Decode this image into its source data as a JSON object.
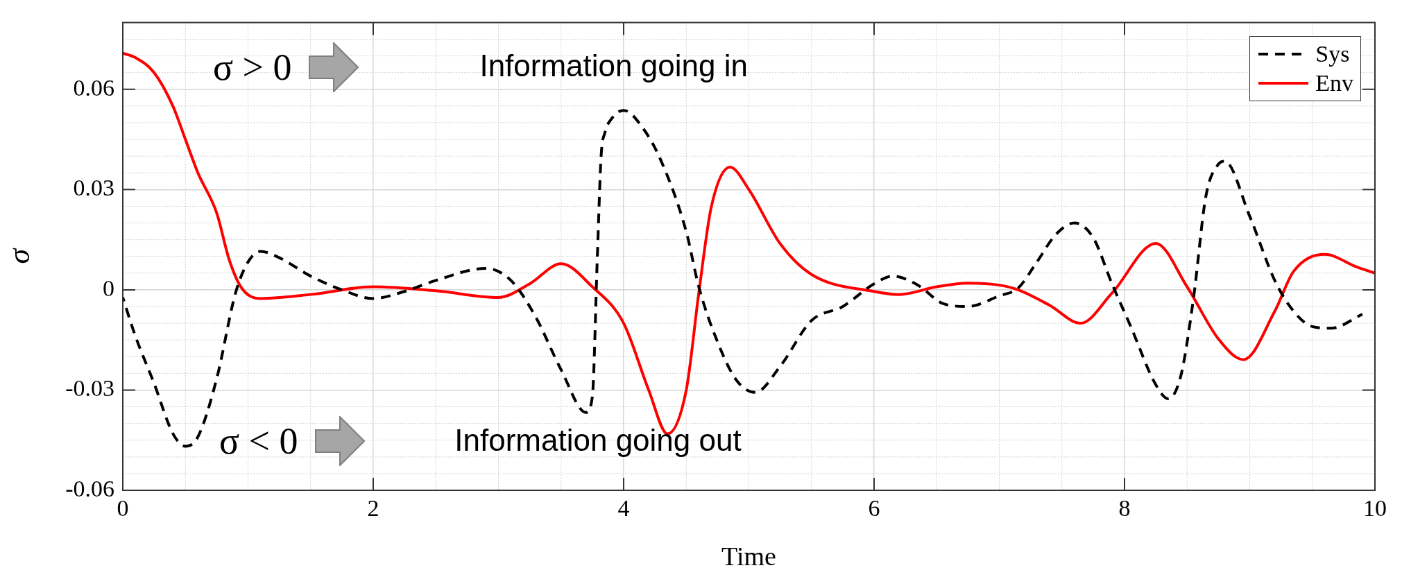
{
  "chart_data": {
    "type": "line",
    "xlabel": "Time",
    "ylabel": "σ",
    "annotations": [
      "σ > 0",
      "Information going in",
      "σ < 0",
      "Information going out"
    ],
    "xlim": [
      0,
      10
    ],
    "xticks": [
      0,
      2,
      4,
      6,
      8,
      10
    ],
    "ylim": [
      -0.06,
      0.08
    ],
    "yticks": [
      -0.06,
      -0.03,
      0,
      0.03,
      0.06
    ],
    "grid": true,
    "legend": "top right",
    "marker": "none",
    "series": [
      {
        "name": "Sys",
        "color": "#000000",
        "line_style": "dashed",
        "x": [
          0,
          0.1,
          0.25,
          0.4,
          0.5,
          0.6,
          0.75,
          0.9,
          1.0,
          1.1,
          1.25,
          1.5,
          1.75,
          2,
          2.25,
          2.5,
          2.9,
          3.1,
          3.3,
          3.5,
          3.7,
          3.75,
          3.79,
          3.82,
          3.85,
          3.9,
          4.0,
          4.15,
          4.3,
          4.5,
          4.6,
          4.75,
          4.9,
          5.05,
          5.25,
          5.5,
          5.75,
          6.0,
          6.15,
          6.35,
          6.55,
          6.75,
          7.0,
          7.15,
          7.3,
          7.45,
          7.6,
          7.75,
          7.9,
          8.05,
          8.25,
          8.35,
          8.45,
          8.55,
          8.65,
          8.75,
          8.8,
          9.0,
          9.2,
          9.35,
          9.5,
          9.65,
          9.9
        ],
        "values": [
          -0.0023,
          -0.0138,
          -0.028,
          -0.043,
          -0.0468,
          -0.044,
          -0.0266,
          -0.001,
          0.0083,
          0.0115,
          0.0096,
          0.0041,
          0,
          -0.0026,
          -0.0005,
          0.0028,
          0.0064,
          0.0028,
          -0.0083,
          -0.0239,
          -0.0367,
          -0.032,
          0.01,
          0.04,
          0.047,
          0.051,
          0.0537,
          0.0486,
          0.0385,
          0.0174,
          0.0009,
          -0.0156,
          -0.027,
          -0.0307,
          -0.0229,
          -0.0092,
          -0.005,
          0.0018,
          0.0041,
          0.0014,
          -0.0041,
          -0.005,
          -0.0018,
          0.0005,
          0.0083,
          0.0165,
          0.02,
          0.0156,
          0.0018,
          -0.011,
          -0.0284,
          -0.0326,
          -0.0257,
          -0.0028,
          0.028,
          0.0376,
          0.0385,
          0.022,
          0.0028,
          -0.0064,
          -0.011,
          -0.0115,
          -0.0073
        ]
      },
      {
        "name": "Env",
        "color": "#ff0000",
        "line_style": "solid",
        "x": [
          0,
          0.1,
          0.25,
          0.4,
          0.5,
          0.6,
          0.75,
          0.85,
          0.95,
          1.1,
          1.5,
          2,
          2.5,
          3,
          3.25,
          3.5,
          3.75,
          4,
          4.2,
          4.35,
          4.5,
          4.6,
          4.7,
          4.85,
          5.0,
          5.25,
          5.5,
          6,
          6.2,
          6.5,
          6.75,
          7,
          7.15,
          7.4,
          7.65,
          7.9,
          8.25,
          8.5,
          8.75,
          8.95,
          9.2,
          9.35,
          9.6,
          9.85,
          10
        ],
        "values": [
          0.0708,
          0.0695,
          0.065,
          0.055,
          0.045,
          0.035,
          0.023,
          0.009,
          0.0005,
          -0.0026,
          -0.0014,
          0.0009,
          -0.0003,
          -0.0023,
          0.0018,
          0.0078,
          0.0009,
          -0.01,
          -0.03,
          -0.0431,
          -0.03,
          -0.001,
          0.0248,
          0.0367,
          0.03,
          0.0138,
          0.0046,
          -0.0005,
          -0.0014,
          0.0009,
          0.002,
          0.0014,
          0,
          -0.0046,
          -0.01,
          -0.001,
          0.0139,
          0.0009,
          -0.0147,
          -0.0209,
          -0.0064,
          0.0055,
          0.0106,
          0.0069,
          0.005
        ]
      }
    ]
  }
}
